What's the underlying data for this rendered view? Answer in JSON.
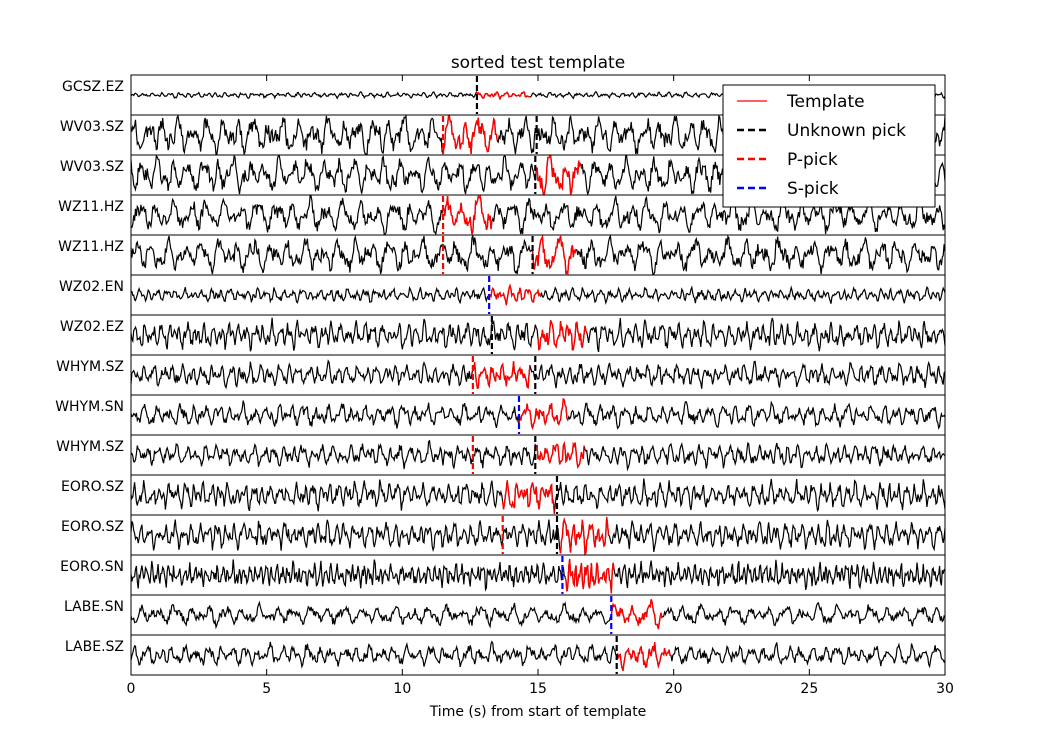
{
  "chart_data": {
    "type": "line",
    "title": "sorted test template",
    "xlabel": "Time (s) from start of template",
    "xlim": [
      0,
      30
    ],
    "xticks": [
      0,
      5,
      10,
      15,
      20,
      25,
      30
    ],
    "legend": {
      "placement": "top-right",
      "entries": [
        {
          "label": "Template",
          "style": "solid",
          "color": "#ff0000"
        },
        {
          "label": "Unknown pick",
          "style": "dashed",
          "color": "#000000"
        },
        {
          "label": "P-pick",
          "style": "dashed",
          "color": "#ff0000"
        },
        {
          "label": "S-pick",
          "style": "dashed",
          "color": "#0000ff"
        }
      ]
    },
    "channels": [
      {
        "name": "GCSZ.EZ",
        "amp": 0.12,
        "freq": 3.0,
        "template_start": 12.7,
        "template_end": 14.7,
        "picks": [
          {
            "type": "unknown",
            "t": 12.75
          }
        ]
      },
      {
        "name": "WV03.SZ",
        "amp": 0.85,
        "freq": 1.8,
        "template_start": 11.5,
        "template_end": 13.5,
        "picks": [
          {
            "type": "P",
            "t": 11.5
          },
          {
            "type": "unknown",
            "t": 14.95
          }
        ]
      },
      {
        "name": "WV03.SZ",
        "amp": 0.8,
        "freq": 1.8,
        "template_start": 14.9,
        "template_end": 16.6,
        "picks": [
          {
            "type": "unknown",
            "t": 14.9
          }
        ]
      },
      {
        "name": "WZ11.HZ",
        "amp": 0.75,
        "freq": 1.6,
        "template_start": 11.5,
        "template_end": 13.3,
        "picks": [
          {
            "type": "P",
            "t": 11.5
          }
        ]
      },
      {
        "name": "WZ11.HZ",
        "amp": 0.75,
        "freq": 1.6,
        "template_start": 14.8,
        "template_end": 16.4,
        "picks": [
          {
            "type": "P",
            "t": 11.5
          },
          {
            "type": "unknown",
            "t": 14.8
          }
        ]
      },
      {
        "name": "WZ02.EN",
        "amp": 0.3,
        "freq": 3.0,
        "template_start": 13.2,
        "template_end": 15.1,
        "picks": [
          {
            "type": "S",
            "t": 13.2
          }
        ]
      },
      {
        "name": "WZ02.EZ",
        "amp": 0.6,
        "freq": 3.2,
        "template_start": 15.0,
        "template_end": 16.8,
        "picks": [
          {
            "type": "unknown",
            "t": 13.3
          }
        ]
      },
      {
        "name": "WHYM.SZ",
        "amp": 0.5,
        "freq": 2.8,
        "template_start": 12.6,
        "template_end": 14.7,
        "picks": [
          {
            "type": "P",
            "t": 12.6
          },
          {
            "type": "unknown",
            "t": 14.9
          }
        ]
      },
      {
        "name": "WHYM.SN",
        "amp": 0.5,
        "freq": 2.2,
        "template_start": 14.3,
        "template_end": 16.1,
        "picks": [
          {
            "type": "S",
            "t": 14.3
          }
        ]
      },
      {
        "name": "WHYM.SZ",
        "amp": 0.5,
        "freq": 2.8,
        "template_start": 14.9,
        "template_end": 16.7,
        "picks": [
          {
            "type": "P",
            "t": 12.6
          },
          {
            "type": "unknown",
            "t": 14.9
          }
        ]
      },
      {
        "name": "EORO.SZ",
        "amp": 0.6,
        "freq": 3.2,
        "template_start": 13.7,
        "template_end": 15.6,
        "picks": [
          {
            "type": "unknown",
            "t": 15.7
          }
        ]
      },
      {
        "name": "EORO.SZ",
        "amp": 0.6,
        "freq": 3.2,
        "template_start": 15.8,
        "template_end": 17.6,
        "picks": [
          {
            "type": "P",
            "t": 13.7
          },
          {
            "type": "unknown",
            "t": 15.7
          }
        ]
      },
      {
        "name": "EORO.SN",
        "amp": 0.55,
        "freq": 5.0,
        "template_start": 16.0,
        "template_end": 17.8,
        "picks": [
          {
            "type": "S",
            "t": 15.9
          }
        ]
      },
      {
        "name": "LABE.SN",
        "amp": 0.45,
        "freq": 1.6,
        "template_start": 17.7,
        "template_end": 19.6,
        "picks": [
          {
            "type": "S",
            "t": 17.7
          }
        ]
      },
      {
        "name": "LABE.SZ",
        "amp": 0.45,
        "freq": 2.2,
        "template_start": 17.9,
        "template_end": 19.9,
        "picks": [
          {
            "type": "unknown",
            "t": 17.9
          }
        ]
      }
    ]
  }
}
